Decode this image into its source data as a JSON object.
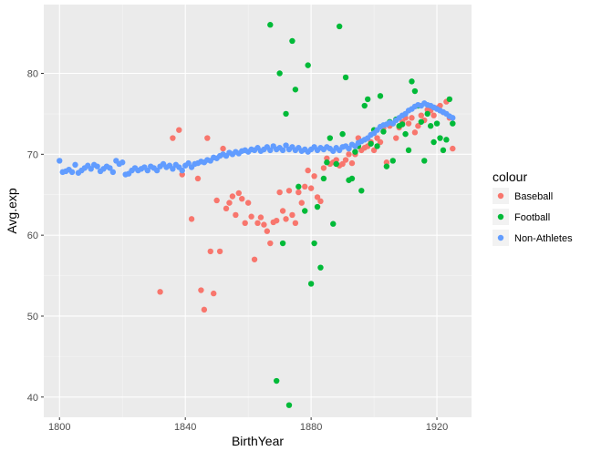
{
  "chart_data": {
    "type": "scatter",
    "xlabel": "BirthYear",
    "ylabel": "Avg.exp",
    "xlim": [
      1795,
      1931
    ],
    "ylim": [
      37.5,
      88.5
    ],
    "x_ticks": [
      1800,
      1840,
      1880,
      1920
    ],
    "y_ticks": [
      40,
      50,
      60,
      70,
      80
    ],
    "grid": true,
    "legend": {
      "title": "colour",
      "position": "right"
    },
    "series": [
      {
        "name": "Baseball",
        "color": "#F8766D",
        "points": [
          [
            1832,
            53
          ],
          [
            1836,
            72
          ],
          [
            1838,
            73
          ],
          [
            1839,
            67.5
          ],
          [
            1842,
            62
          ],
          [
            1844,
            67
          ],
          [
            1845,
            53.2
          ],
          [
            1846,
            50.8
          ],
          [
            1847,
            72
          ],
          [
            1848,
            58
          ],
          [
            1849,
            52.8
          ],
          [
            1850,
            64.3
          ],
          [
            1851,
            58
          ],
          [
            1852,
            70.7
          ],
          [
            1853,
            63.3
          ],
          [
            1854,
            64
          ],
          [
            1855,
            64.8
          ],
          [
            1856,
            62.5
          ],
          [
            1857,
            65.2
          ],
          [
            1858,
            64.5
          ],
          [
            1859,
            61.5
          ],
          [
            1860,
            64
          ],
          [
            1861,
            62.3
          ],
          [
            1862,
            57
          ],
          [
            1863,
            61.5
          ],
          [
            1864,
            62.2
          ],
          [
            1865,
            61.3
          ],
          [
            1866,
            60.5
          ],
          [
            1867,
            59
          ],
          [
            1868,
            61.6
          ],
          [
            1869,
            61.8
          ],
          [
            1870,
            65.3
          ],
          [
            1871,
            63
          ],
          [
            1872,
            62
          ],
          [
            1873,
            65.5
          ],
          [
            1874,
            62.5
          ],
          [
            1875,
            61.5
          ],
          [
            1876,
            65.3
          ],
          [
            1877,
            64
          ],
          [
            1878,
            66
          ],
          [
            1879,
            68
          ],
          [
            1880,
            65.8
          ],
          [
            1881,
            67.3
          ],
          [
            1882,
            64.7
          ],
          [
            1883,
            64.2
          ],
          [
            1884,
            68.3
          ],
          [
            1885,
            69.5
          ],
          [
            1886,
            68.8
          ],
          [
            1887,
            69
          ],
          [
            1888,
            69.3
          ],
          [
            1889,
            68.6
          ],
          [
            1890,
            68.8
          ],
          [
            1891,
            69.3
          ],
          [
            1892,
            70
          ],
          [
            1893,
            68.9
          ],
          [
            1894,
            70
          ],
          [
            1895,
            72
          ],
          [
            1896,
            70.5
          ],
          [
            1897,
            70.8
          ],
          [
            1898,
            71
          ],
          [
            1899,
            71.5
          ],
          [
            1900,
            70.5
          ],
          [
            1901,
            72
          ],
          [
            1902,
            71.5
          ],
          [
            1903,
            73.2
          ],
          [
            1904,
            69
          ],
          [
            1905,
            73.5
          ],
          [
            1906,
            73.8
          ],
          [
            1907,
            72
          ],
          [
            1908,
            73.3
          ],
          [
            1909,
            74
          ],
          [
            1910,
            74.5
          ],
          [
            1911,
            73.8
          ],
          [
            1912,
            74.5
          ],
          [
            1913,
            72.7
          ],
          [
            1914,
            73.5
          ],
          [
            1915,
            74.8
          ],
          [
            1916,
            74.2
          ],
          [
            1917,
            75.5
          ],
          [
            1918,
            75.4
          ],
          [
            1919,
            74.8
          ],
          [
            1920,
            75.7
          ],
          [
            1921,
            76
          ],
          [
            1922,
            75.2
          ],
          [
            1923,
            76.5
          ],
          [
            1924,
            74.5
          ],
          [
            1925,
            70.7
          ]
        ]
      },
      {
        "name": "Football",
        "color": "#00BA38",
        "points": [
          [
            1867,
            86
          ],
          [
            1869,
            42
          ],
          [
            1870,
            80
          ],
          [
            1871,
            59
          ],
          [
            1872,
            75
          ],
          [
            1873,
            39
          ],
          [
            1874,
            84
          ],
          [
            1875,
            78
          ],
          [
            1876,
            66
          ],
          [
            1878,
            63
          ],
          [
            1879,
            81
          ],
          [
            1880,
            54
          ],
          [
            1881,
            59
          ],
          [
            1882,
            63.5
          ],
          [
            1883,
            56
          ],
          [
            1884,
            67
          ],
          [
            1885,
            69
          ],
          [
            1886,
            72
          ],
          [
            1887,
            61.4
          ],
          [
            1888,
            68.8
          ],
          [
            1889,
            85.8
          ],
          [
            1890,
            72.5
          ],
          [
            1891,
            79.5
          ],
          [
            1892,
            66.8
          ],
          [
            1893,
            67
          ],
          [
            1894,
            70.3
          ],
          [
            1895,
            71
          ],
          [
            1896,
            65.5
          ],
          [
            1897,
            76
          ],
          [
            1898,
            76.8
          ],
          [
            1899,
            71.3
          ],
          [
            1900,
            73
          ],
          [
            1901,
            71
          ],
          [
            1902,
            77.2
          ],
          [
            1903,
            72.8
          ],
          [
            1904,
            68.5
          ],
          [
            1905,
            74
          ],
          [
            1906,
            69.2
          ],
          [
            1907,
            74.3
          ],
          [
            1908,
            73.5
          ],
          [
            1909,
            73.7
          ],
          [
            1910,
            72.5
          ],
          [
            1911,
            70.5
          ],
          [
            1912,
            79
          ],
          [
            1913,
            77.8
          ],
          [
            1914,
            76
          ],
          [
            1915,
            74
          ],
          [
            1916,
            69.2
          ],
          [
            1917,
            75
          ],
          [
            1918,
            73.5
          ],
          [
            1919,
            71.5
          ],
          [
            1920,
            73.8
          ],
          [
            1921,
            72
          ],
          [
            1922,
            70.5
          ],
          [
            1923,
            71.8
          ],
          [
            1924,
            76.8
          ],
          [
            1925,
            73.8
          ]
        ]
      },
      {
        "name": "Non-Athletes",
        "color": "#619CFF",
        "points": [
          [
            1800,
            69.2
          ],
          [
            1801,
            67.8
          ],
          [
            1802,
            67.9
          ],
          [
            1803,
            68.1
          ],
          [
            1804,
            67.8
          ],
          [
            1805,
            68.7
          ],
          [
            1806,
            67.7
          ],
          [
            1807,
            68
          ],
          [
            1808,
            68.3
          ],
          [
            1809,
            68.6
          ],
          [
            1810,
            68.2
          ],
          [
            1811,
            68.7
          ],
          [
            1812,
            68.5
          ],
          [
            1813,
            67.9
          ],
          [
            1814,
            68.2
          ],
          [
            1815,
            68.5
          ],
          [
            1816,
            68.3
          ],
          [
            1817,
            67.8
          ],
          [
            1818,
            69.2
          ],
          [
            1819,
            68.8
          ],
          [
            1820,
            69
          ],
          [
            1821,
            67.5
          ],
          [
            1822,
            67.6
          ],
          [
            1823,
            68
          ],
          [
            1824,
            68.3
          ],
          [
            1825,
            68
          ],
          [
            1826,
            68.2
          ],
          [
            1827,
            68.4
          ],
          [
            1828,
            68
          ],
          [
            1829,
            68.5
          ],
          [
            1830,
            68.3
          ],
          [
            1831,
            68
          ],
          [
            1832,
            68.5
          ],
          [
            1833,
            68.8
          ],
          [
            1834,
            68.4
          ],
          [
            1835,
            68.6
          ],
          [
            1836,
            68.2
          ],
          [
            1837,
            68.7
          ],
          [
            1838,
            68.4
          ],
          [
            1839,
            68
          ],
          [
            1840,
            68.6
          ],
          [
            1841,
            68.9
          ],
          [
            1842,
            68.4
          ],
          [
            1843,
            68.8
          ],
          [
            1844,
            68.9
          ],
          [
            1845,
            69.1
          ],
          [
            1846,
            69
          ],
          [
            1847,
            69.3
          ],
          [
            1848,
            69.2
          ],
          [
            1849,
            69.6
          ],
          [
            1850,
            69.5
          ],
          [
            1851,
            69.8
          ],
          [
            1852,
            70
          ],
          [
            1853,
            69.8
          ],
          [
            1854,
            70.2
          ],
          [
            1855,
            70
          ],
          [
            1856,
            70.3
          ],
          [
            1857,
            70.1
          ],
          [
            1858,
            70.4
          ],
          [
            1859,
            70.5
          ],
          [
            1860,
            70.3
          ],
          [
            1861,
            70.6
          ],
          [
            1862,
            70.5
          ],
          [
            1863,
            70.8
          ],
          [
            1864,
            70.4
          ],
          [
            1865,
            70.6
          ],
          [
            1866,
            70.9
          ],
          [
            1867,
            70.5
          ],
          [
            1868,
            71
          ],
          [
            1869,
            70.6
          ],
          [
            1870,
            70.8
          ],
          [
            1871,
            70.5
          ],
          [
            1872,
            71.1
          ],
          [
            1873,
            70.6
          ],
          [
            1874,
            70.9
          ],
          [
            1875,
            70.5
          ],
          [
            1876,
            70.8
          ],
          [
            1877,
            70.4
          ],
          [
            1878,
            70.6
          ],
          [
            1879,
            70.3
          ],
          [
            1880,
            70.6
          ],
          [
            1881,
            70.9
          ],
          [
            1882,
            70.5
          ],
          [
            1883,
            70.8
          ],
          [
            1884,
            70.6
          ],
          [
            1885,
            70.9
          ],
          [
            1886,
            70.7
          ],
          [
            1887,
            70.4
          ],
          [
            1888,
            70.8
          ],
          [
            1889,
            70.5
          ],
          [
            1890,
            70.9
          ],
          [
            1891,
            71
          ],
          [
            1892,
            70.7
          ],
          [
            1893,
            71.2
          ],
          [
            1894,
            71
          ],
          [
            1895,
            71.4
          ],
          [
            1896,
            71.6
          ],
          [
            1897,
            71.8
          ],
          [
            1898,
            72
          ],
          [
            1899,
            72.4
          ],
          [
            1900,
            72.6
          ],
          [
            1901,
            73
          ],
          [
            1902,
            73.4
          ],
          [
            1903,
            73.6
          ],
          [
            1904,
            73.7
          ],
          [
            1905,
            73.9
          ],
          [
            1906,
            73.8
          ],
          [
            1907,
            74.2
          ],
          [
            1908,
            74.5
          ],
          [
            1909,
            74.8
          ],
          [
            1910,
            75
          ],
          [
            1911,
            75.4
          ],
          [
            1912,
            75.6
          ],
          [
            1913,
            75.9
          ],
          [
            1914,
            76.1
          ],
          [
            1915,
            76
          ],
          [
            1916,
            76.3
          ],
          [
            1917,
            76.1
          ],
          [
            1918,
            76
          ],
          [
            1919,
            75.8
          ],
          [
            1920,
            75.6
          ],
          [
            1921,
            75.4
          ],
          [
            1922,
            75.2
          ],
          [
            1923,
            75
          ],
          [
            1924,
            74.7
          ],
          [
            1925,
            74.5
          ]
        ]
      }
    ]
  }
}
